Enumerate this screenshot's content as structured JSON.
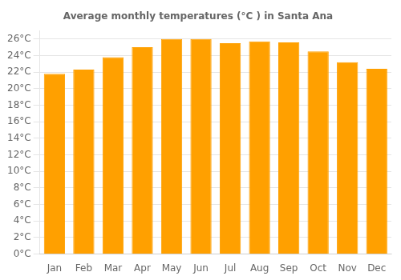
{
  "chart_data": {
    "type": "bar",
    "title": "Average monthly temperatures (°C ) in Santa Ana",
    "categories": [
      "Jan",
      "Feb",
      "Mar",
      "Apr",
      "May",
      "Jun",
      "Jul",
      "Aug",
      "Sep",
      "Oct",
      "Nov",
      "Dec"
    ],
    "values": [
      21.8,
      22.3,
      23.8,
      25.0,
      26.0,
      26.0,
      25.5,
      25.7,
      25.6,
      24.5,
      23.2,
      22.4
    ],
    "color": "#FFA000",
    "ylim": [
      0,
      27
    ],
    "yticks": [
      {
        "value": 0,
        "label": "0°C"
      },
      {
        "value": 2,
        "label": "2°C"
      },
      {
        "value": 4,
        "label": "4°C"
      },
      {
        "value": 6,
        "label": "6°C"
      },
      {
        "value": 8,
        "label": "8°C"
      },
      {
        "value": 10,
        "label": "10°C"
      },
      {
        "value": 12,
        "label": "12°C"
      },
      {
        "value": 14,
        "label": "14°C"
      },
      {
        "value": 16,
        "label": "16°C"
      },
      {
        "value": 18,
        "label": "18°C"
      },
      {
        "value": 20,
        "label": "20°C"
      },
      {
        "value": 22,
        "label": "22°C"
      },
      {
        "value": 24,
        "label": "24°C"
      },
      {
        "value": 26,
        "label": "26°C"
      }
    ],
    "grid": true
  }
}
